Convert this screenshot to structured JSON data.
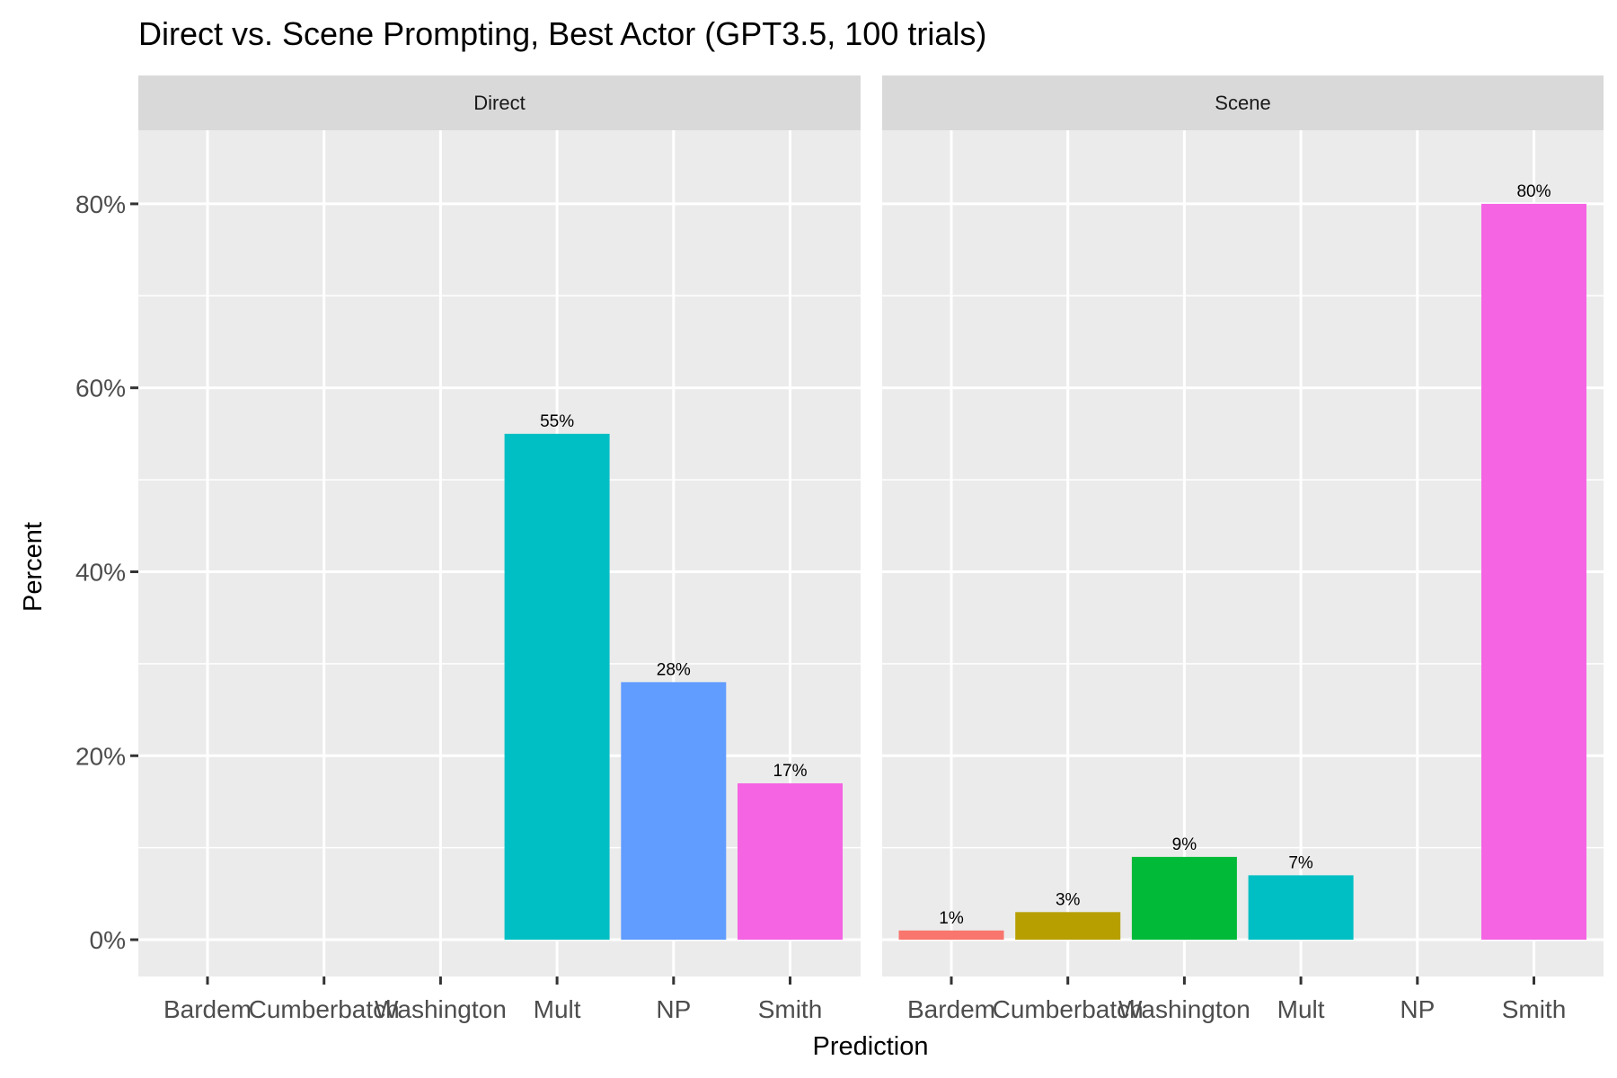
{
  "chart_data": {
    "type": "bar",
    "title": "Direct vs. Scene Prompting, Best Actor (GPT3.5, 100 trials)",
    "xlabel": "Prediction",
    "ylabel": "Percent",
    "ylim": [
      -4,
      88
    ],
    "y_ticks": [
      0,
      20,
      40,
      60,
      80
    ],
    "y_tick_labels": [
      "0%",
      "20%",
      "40%",
      "60%",
      "80%"
    ],
    "categories": [
      "Bardem",
      "Cumberbatch",
      "Washington",
      "Mult",
      "NP",
      "Smith"
    ],
    "category_colors": {
      "Bardem": "#F8766D",
      "Cumberbatch": "#B79F00",
      "Washington": "#00BA38",
      "Mult": "#00BFC4",
      "NP": "#619CFF",
      "Smith": "#F564E3"
    },
    "panels": [
      {
        "facet": "Direct",
        "bars": [
          {
            "category": "Mult",
            "value": 55,
            "label": "55%"
          },
          {
            "category": "NP",
            "value": 28,
            "label": "28%"
          },
          {
            "category": "Smith",
            "value": 17,
            "label": "17%"
          }
        ]
      },
      {
        "facet": "Scene",
        "bars": [
          {
            "category": "Bardem",
            "value": 1,
            "label": "1%"
          },
          {
            "category": "Cumberbatch",
            "value": 3,
            "label": "3%"
          },
          {
            "category": "Washington",
            "value": 9,
            "label": "9%"
          },
          {
            "category": "Mult",
            "value": 7,
            "label": "7%"
          },
          {
            "category": "Smith",
            "value": 80,
            "label": "80%"
          }
        ]
      }
    ]
  }
}
